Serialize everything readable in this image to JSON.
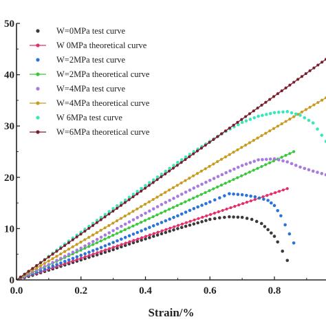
{
  "chart_data": {
    "type": "scatter",
    "title": "",
    "xlabel": "Strain/%",
    "ylabel": "",
    "xlim": [
      0,
      0.96
    ],
    "ylim": [
      0,
      50
    ],
    "xticks": [
      "0.0",
      "0.2",
      "0.4",
      "0.6",
      "0.8"
    ],
    "yticks": [
      "0",
      "10",
      "20",
      "30",
      "40",
      "50"
    ],
    "legend_position": "top-left",
    "grid": false,
    "series": [
      {
        "name": "W=0MPa test curve",
        "kind": "test",
        "color": "#3a3a3a",
        "points": [
          [
            0.0,
            0.0
          ],
          [
            0.05,
            0.9
          ],
          [
            0.1,
            1.9
          ],
          [
            0.15,
            2.9
          ],
          [
            0.2,
            3.9
          ],
          [
            0.25,
            4.9
          ],
          [
            0.3,
            5.9
          ],
          [
            0.35,
            7.0
          ],
          [
            0.4,
            8.0
          ],
          [
            0.45,
            9.0
          ],
          [
            0.5,
            10.0
          ],
          [
            0.55,
            10.9
          ],
          [
            0.6,
            11.8
          ],
          [
            0.63,
            12.1
          ],
          [
            0.66,
            12.3
          ],
          [
            0.7,
            12.2
          ],
          [
            0.73,
            11.8
          ],
          [
            0.76,
            11.0
          ],
          [
            0.78,
            9.8
          ],
          [
            0.8,
            8.5
          ],
          [
            0.81,
            7.4
          ],
          [
            0.84,
            3.8
          ]
        ]
      },
      {
        "name": "W  0MPa theoretical curve",
        "kind": "theoretical",
        "color": "#e0306e",
        "x_end": 0.84,
        "y_end": 17.8
      },
      {
        "name": "W=2MPa test curve",
        "kind": "test",
        "color": "#2a73d8",
        "points": [
          [
            0.0,
            0.0
          ],
          [
            0.05,
            1.2
          ],
          [
            0.1,
            2.4
          ],
          [
            0.15,
            3.6
          ],
          [
            0.2,
            4.8
          ],
          [
            0.25,
            6.0
          ],
          [
            0.3,
            7.3
          ],
          [
            0.35,
            8.6
          ],
          [
            0.4,
            9.9
          ],
          [
            0.45,
            11.2
          ],
          [
            0.5,
            12.5
          ],
          [
            0.55,
            13.9
          ],
          [
            0.6,
            15.2
          ],
          [
            0.63,
            16.0
          ],
          [
            0.66,
            16.8
          ],
          [
            0.7,
            16.6
          ],
          [
            0.74,
            16.2
          ],
          [
            0.78,
            15.5
          ],
          [
            0.8,
            14.5
          ],
          [
            0.82,
            12.5
          ],
          [
            0.86,
            7.2
          ]
        ]
      },
      {
        "name": "W=2MPa theoretical curve",
        "kind": "theoretical",
        "color": "#39c83a",
        "x_end": 0.86,
        "y_end": 25.0
      },
      {
        "name": "W=4MPa test curve",
        "kind": "test",
        "color": "#a87ae0",
        "points": [
          [
            0.0,
            0.0
          ],
          [
            0.05,
            1.5
          ],
          [
            0.1,
            3.0
          ],
          [
            0.15,
            4.6
          ],
          [
            0.2,
            6.2
          ],
          [
            0.25,
            7.9
          ],
          [
            0.3,
            9.6
          ],
          [
            0.35,
            11.3
          ],
          [
            0.4,
            13.0
          ],
          [
            0.45,
            14.7
          ],
          [
            0.5,
            16.3
          ],
          [
            0.55,
            17.9
          ],
          [
            0.6,
            19.4
          ],
          [
            0.65,
            20.9
          ],
          [
            0.7,
            22.3
          ],
          [
            0.75,
            23.4
          ],
          [
            0.8,
            23.6
          ],
          [
            0.84,
            23.0
          ],
          [
            0.88,
            22.0
          ],
          [
            0.92,
            21.2
          ],
          [
            0.96,
            20.5
          ]
        ]
      },
      {
        "name": "W=4MPa theoretical curve",
        "kind": "theoretical",
        "color": "#c89b1e",
        "x_end": 0.96,
        "y_end": 35.5
      },
      {
        "name": "W  6MPa test curve",
        "kind": "test",
        "color": "#38e8b8",
        "points": [
          [
            0.0,
            0.0
          ],
          [
            0.05,
            2.2
          ],
          [
            0.1,
            4.6
          ],
          [
            0.15,
            7.0
          ],
          [
            0.2,
            9.3
          ],
          [
            0.25,
            11.6
          ],
          [
            0.3,
            13.9
          ],
          [
            0.35,
            16.1
          ],
          [
            0.4,
            18.4
          ],
          [
            0.45,
            20.6
          ],
          [
            0.5,
            22.9
          ],
          [
            0.55,
            25.0
          ],
          [
            0.6,
            27.0
          ],
          [
            0.65,
            29.0
          ],
          [
            0.7,
            30.7
          ],
          [
            0.75,
            31.9
          ],
          [
            0.8,
            32.6
          ],
          [
            0.84,
            32.8
          ],
          [
            0.88,
            32.1
          ],
          [
            0.92,
            30.6
          ],
          [
            0.96,
            27.0
          ]
        ]
      },
      {
        "name": "W=6MPa theoretical curve",
        "kind": "theoretical",
        "color": "#7a1e2e",
        "x_end": 0.96,
        "y_end": 43.0
      }
    ]
  }
}
